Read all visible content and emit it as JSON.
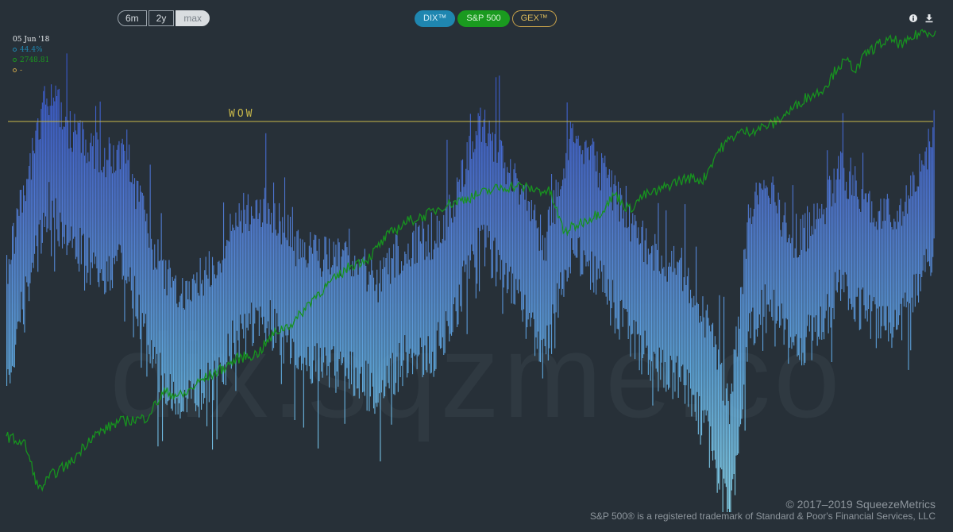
{
  "colors": {
    "background": "#273038",
    "dix_bar_top": "#2d47c8",
    "dix_bar_bottom": "#87d4ea",
    "sp500_line": "#17931f",
    "threshold_line": "#c8b84a",
    "annotation_text": "#c8b84a",
    "dix_button": "#1f86b0",
    "sp500_button": "#1a9a1f",
    "gex_button_border": "#c8a24a",
    "watermark": "#2f3941"
  },
  "range_buttons": [
    {
      "label": "6m",
      "active": false
    },
    {
      "label": "2y",
      "active": false
    },
    {
      "label": "max",
      "active": true
    }
  ],
  "series_buttons": [
    {
      "label": "DIX™",
      "style": "filled-blue"
    },
    {
      "label": "S&P 500",
      "style": "filled-green"
    },
    {
      "label": "GEX™",
      "style": "outline-gold"
    }
  ],
  "toolbar": {
    "info_icon": "info-icon",
    "download_icon": "download-icon"
  },
  "readout": {
    "date": "05 Jun '18",
    "dix_value": "44.4%",
    "sp500_value": "2748.81",
    "gex_value": "-"
  },
  "annotation": {
    "text": "WOW"
  },
  "watermark": {
    "text": "dix.sqzme.co"
  },
  "footer": {
    "copyright": "© 2017–2019 SqueezeMetrics",
    "trademark": "S&P 500® is a registered trademark of Standard & Poor's Financial Services, LLC"
  },
  "chart_data": {
    "type": "bar",
    "dix_range": [
      0.31,
      0.5
    ],
    "threshold_dix": 0.45,
    "dix_anchors": [
      [
        0.0,
        0.385
      ],
      [
        0.02,
        0.42
      ],
      [
        0.045,
        0.455
      ],
      [
        0.07,
        0.44
      ],
      [
        0.1,
        0.43
      ],
      [
        0.13,
        0.43
      ],
      [
        0.16,
        0.39
      ],
      [
        0.19,
        0.375
      ],
      [
        0.22,
        0.385
      ],
      [
        0.25,
        0.405
      ],
      [
        0.28,
        0.41
      ],
      [
        0.31,
        0.395
      ],
      [
        0.34,
        0.39
      ],
      [
        0.37,
        0.39
      ],
      [
        0.4,
        0.38
      ],
      [
        0.43,
        0.395
      ],
      [
        0.46,
        0.395
      ],
      [
        0.49,
        0.42
      ],
      [
        0.51,
        0.445
      ],
      [
        0.53,
        0.43
      ],
      [
        0.55,
        0.42
      ],
      [
        0.58,
        0.395
      ],
      [
        0.61,
        0.44
      ],
      [
        0.64,
        0.425
      ],
      [
        0.67,
        0.405
      ],
      [
        0.7,
        0.39
      ],
      [
        0.73,
        0.385
      ],
      [
        0.755,
        0.365
      ],
      [
        0.78,
        0.33
      ],
      [
        0.8,
        0.405
      ],
      [
        0.82,
        0.42
      ],
      [
        0.85,
        0.395
      ],
      [
        0.88,
        0.41
      ],
      [
        0.9,
        0.425
      ],
      [
        0.93,
        0.41
      ],
      [
        0.96,
        0.405
      ],
      [
        0.98,
        0.42
      ],
      [
        1.0,
        0.44
      ]
    ],
    "sp500_range": [
      650,
      3050
    ],
    "sp500_anchors": [
      [
        0.0,
        1030
      ],
      [
        0.02,
        990
      ],
      [
        0.035,
        760
      ],
      [
        0.05,
        840
      ],
      [
        0.07,
        900
      ],
      [
        0.09,
        1020
      ],
      [
        0.12,
        1100
      ],
      [
        0.15,
        1120
      ],
      [
        0.17,
        1250
      ],
      [
        0.19,
        1230
      ],
      [
        0.21,
        1310
      ],
      [
        0.23,
        1360
      ],
      [
        0.25,
        1420
      ],
      [
        0.27,
        1440
      ],
      [
        0.29,
        1550
      ],
      [
        0.31,
        1600
      ],
      [
        0.33,
        1720
      ],
      [
        0.35,
        1800
      ],
      [
        0.37,
        1880
      ],
      [
        0.39,
        1920
      ],
      [
        0.41,
        2030
      ],
      [
        0.43,
        2100
      ],
      [
        0.45,
        2130
      ],
      [
        0.47,
        2180
      ],
      [
        0.49,
        2210
      ],
      [
        0.51,
        2240
      ],
      [
        0.53,
        2270
      ],
      [
        0.55,
        2280
      ],
      [
        0.57,
        2260
      ],
      [
        0.585,
        2250
      ],
      [
        0.6,
        2050
      ],
      [
        0.62,
        2100
      ],
      [
        0.64,
        2150
      ],
      [
        0.655,
        2240
      ],
      [
        0.67,
        2160
      ],
      [
        0.685,
        2230
      ],
      [
        0.7,
        2250
      ],
      [
        0.72,
        2300
      ],
      [
        0.735,
        2320
      ],
      [
        0.75,
        2310
      ],
      [
        0.765,
        2450
      ],
      [
        0.785,
        2540
      ],
      [
        0.805,
        2560
      ],
      [
        0.825,
        2590
      ],
      [
        0.845,
        2660
      ],
      [
        0.86,
        2720
      ],
      [
        0.875,
        2750
      ],
      [
        0.885,
        2800
      ],
      [
        0.895,
        2880
      ],
      [
        0.905,
        2900
      ],
      [
        0.915,
        2860
      ],
      [
        0.925,
        2940
      ],
      [
        0.94,
        2990
      ],
      [
        0.955,
        3010
      ],
      [
        0.965,
        2980
      ],
      [
        0.975,
        3020
      ],
      [
        0.985,
        3050
      ],
      [
        1.0,
        3050
      ]
    ],
    "sp500_current": 2748.81,
    "dix_current": 44.4,
    "xlabel": "",
    "ylabel": "",
    "title": ""
  }
}
